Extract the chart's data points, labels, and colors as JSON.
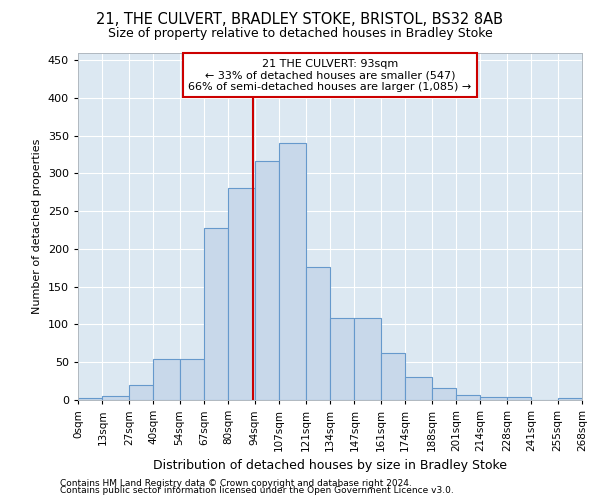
{
  "title1": "21, THE CULVERT, BRADLEY STOKE, BRISTOL, BS32 8AB",
  "title2": "Size of property relative to detached houses in Bradley Stoke",
  "xlabel": "Distribution of detached houses by size in Bradley Stoke",
  "ylabel": "Number of detached properties",
  "footer1": "Contains HM Land Registry data © Crown copyright and database right 2024.",
  "footer2": "Contains public sector information licensed under the Open Government Licence v3.0.",
  "annotation_title": "21 THE CULVERT: 93sqm",
  "annotation_line1": "← 33% of detached houses are smaller (547)",
  "annotation_line2": "66% of semi-detached houses are larger (1,085) →",
  "property_value": 93,
  "bin_edges": [
    0,
    13,
    27,
    40,
    54,
    67,
    80,
    94,
    107,
    121,
    134,
    147,
    161,
    174,
    188,
    201,
    214,
    228,
    241,
    255,
    268
  ],
  "bar_heights": [
    2,
    5,
    20,
    54,
    54,
    228,
    280,
    316,
    340,
    176,
    108,
    108,
    62,
    30,
    16,
    7,
    4,
    4,
    0,
    2
  ],
  "bar_color": "#c8d8ea",
  "bar_edge_color": "#6699cc",
  "vline_color": "#cc0000",
  "vline_x": 93,
  "annotation_box_color": "#ffffff",
  "annotation_box_edge": "#cc0000",
  "background_color": "#dce8f2",
  "ylim": [
    0,
    460
  ],
  "yticks": [
    0,
    50,
    100,
    150,
    200,
    250,
    300,
    350,
    400,
    450
  ],
  "title1_fontsize": 10.5,
  "title2_fontsize": 9,
  "ylabel_fontsize": 8,
  "xlabel_fontsize": 9,
  "tick_fontsize": 8,
  "xtick_fontsize": 7.5,
  "footer_fontsize": 6.5,
  "annotation_fontsize": 8
}
